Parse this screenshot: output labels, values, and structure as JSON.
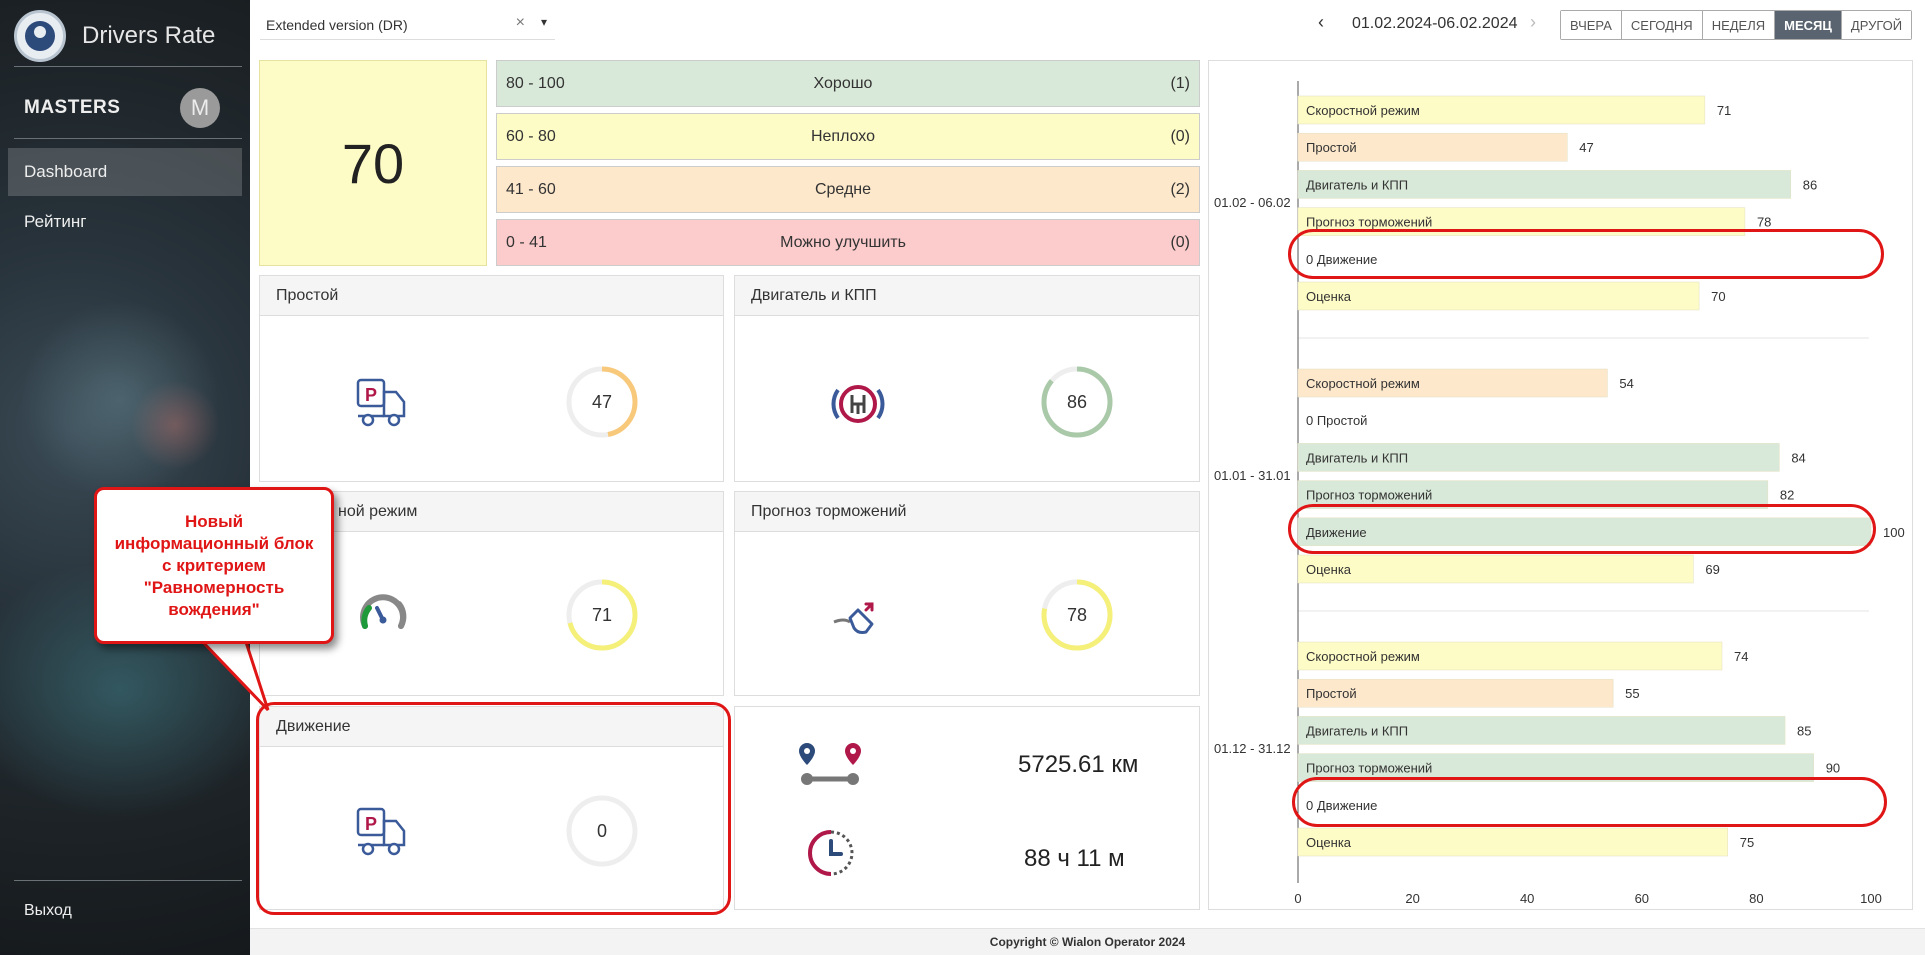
{
  "app": {
    "title": "Drivers Rate"
  },
  "user": {
    "name": "MASTERS",
    "initial": "M"
  },
  "nav": {
    "items": [
      {
        "label": "Dashboard"
      },
      {
        "label": "Рейтинг"
      }
    ],
    "logout": "Выход"
  },
  "toolbar": {
    "report_select": "Extended version (DR)",
    "clear_glyph": "×",
    "dropdown_glyph": "▾",
    "prev_glyph": "‹",
    "next_glyph": "›",
    "date_range": "01.02.2024-06.02.2024",
    "periods": [
      "ВЧЕРА",
      "СЕГОДНЯ",
      "НЕДЕЛЯ",
      "МЕСЯЦ",
      "ДРУГОЙ"
    ],
    "active_period": "МЕСЯЦ"
  },
  "score": {
    "value": "70"
  },
  "legend": [
    {
      "range": "80 - 100",
      "label": "Хорошо",
      "count": "(1)",
      "color": "#d9e9d9"
    },
    {
      "range": "60 - 80",
      "label": "Неплохо",
      "count": "(0)",
      "color": "#fdfbc6"
    },
    {
      "range": "41 - 60",
      "label": "Средне",
      "count": "(2)",
      "color": "#fde8cc"
    },
    {
      "range": "0 - 41",
      "label": "Можно улучшить",
      "count": "(0)",
      "color": "#fccccc"
    }
  ],
  "cards": {
    "idle": {
      "title": "Простой",
      "value": "47",
      "fraction": 0.47,
      "color": "#f8c97a",
      "icon": "parking-truck-icon"
    },
    "engine": {
      "title": "Двигатель и КПП",
      "value": "86",
      "fraction": 0.86,
      "color": "#a9c9a9",
      "icon": "handbrake-icon"
    },
    "speed": {
      "title": "ной режим",
      "value": "71",
      "fraction": 0.71,
      "color": "#f5f07a",
      "icon": "speedometer-icon"
    },
    "braking": {
      "title": "Прогноз торможений",
      "value": "78",
      "fraction": 0.78,
      "color": "#f5f07a",
      "icon": "brake-pedal-icon"
    },
    "movement": {
      "title": "Движение",
      "value": "0",
      "fraction": 0,
      "color": "#cccccc",
      "icon": "parking-truck-icon"
    }
  },
  "stats": {
    "distance": "5725.61 км",
    "duration": "88 ч 11 м",
    "distance_icon": "route-icon",
    "duration_icon": "clock-icon"
  },
  "callout": {
    "text": "Новый информационный блок с критерием \"Равномерность вождения\""
  },
  "chart_data": {
    "type": "bar",
    "orientation": "horizontal",
    "xlim": [
      0,
      100
    ],
    "xticks": [
      0,
      20,
      40,
      60,
      80,
      100
    ],
    "groups": [
      {
        "label": "01.02 - 06.02",
        "bars": [
          {
            "name": "Скоростной режим",
            "value": 71,
            "color": "#fdfbc6"
          },
          {
            "name": "Простой",
            "value": 47,
            "color": "#fde8cc"
          },
          {
            "name": "Двигатель и КПП",
            "value": 86,
            "color": "#d9e9d9"
          },
          {
            "name": "Прогноз торможений",
            "value": 78,
            "color": "#fdfbc6"
          },
          {
            "name": "Движение",
            "value": 0,
            "color": "#fccccc"
          },
          {
            "name": "Оценка",
            "value": 70,
            "color": "#fdfbc6"
          }
        ]
      },
      {
        "label": "01.01 - 31.01",
        "bars": [
          {
            "name": "Скоростной режим",
            "value": 54,
            "color": "#fde8cc"
          },
          {
            "name": "Простой",
            "value": 0,
            "color": "#fccccc"
          },
          {
            "name": "Двигатель и КПП",
            "value": 84,
            "color": "#d9e9d9"
          },
          {
            "name": "Прогноз торможений",
            "value": 82,
            "color": "#d9e9d9"
          },
          {
            "name": "Движение",
            "value": 100,
            "color": "#d9e9d9"
          },
          {
            "name": "Оценка",
            "value": 69,
            "color": "#fdfbc6"
          }
        ]
      },
      {
        "label": "01.12 - 31.12",
        "bars": [
          {
            "name": "Скоростной режим",
            "value": 74,
            "color": "#fdfbc6"
          },
          {
            "name": "Простой",
            "value": 55,
            "color": "#fde8cc"
          },
          {
            "name": "Двигатель и КПП",
            "value": 85,
            "color": "#d9e9d9"
          },
          {
            "name": "Прогноз торможений",
            "value": 90,
            "color": "#d9e9d9"
          },
          {
            "name": "Движение",
            "value": 0,
            "color": "#fccccc"
          },
          {
            "name": "Оценка",
            "value": 75,
            "color": "#fdfbc6"
          }
        ]
      }
    ]
  },
  "footer": {
    "text": "Copyright © Wialon Operator 2024"
  }
}
